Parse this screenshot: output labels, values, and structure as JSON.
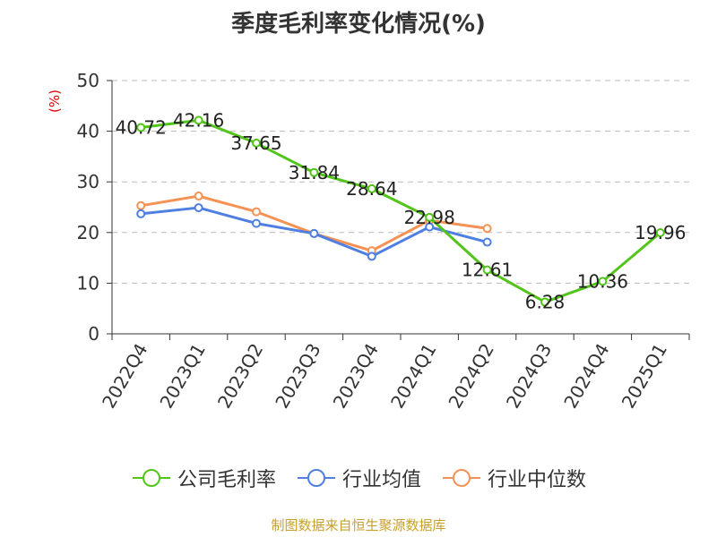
{
  "chart_data": {
    "type": "line",
    "title": "季度毛利率变化情况(%)",
    "ylabel": "(%)",
    "xlabel": "",
    "categories": [
      "2022Q4",
      "2023Q1",
      "2023Q2",
      "2023Q3",
      "2023Q4",
      "2024Q1",
      "2024Q2",
      "2024Q3",
      "2024Q4",
      "2025Q1"
    ],
    "ylim": [
      0,
      50
    ],
    "yticks": [
      0,
      10,
      20,
      30,
      40,
      50
    ],
    "grid": true,
    "legend_position": "bottom",
    "series": [
      {
        "name": "公司毛利率",
        "color": "#52c41a",
        "values": [
          40.72,
          42.16,
          37.65,
          31.84,
          28.64,
          22.98,
          12.61,
          6.28,
          10.36,
          19.96
        ],
        "show_labels": true
      },
      {
        "name": "行业均值",
        "color": "#4f7fe0",
        "values": [
          23.7,
          24.9,
          21.8,
          19.8,
          15.3,
          21.1,
          18.1,
          null,
          null,
          null
        ],
        "show_labels": false
      },
      {
        "name": "行业中位数",
        "color": "#f69154",
        "values": [
          25.3,
          27.2,
          24.1,
          19.8,
          16.4,
          22.4,
          20.8,
          null,
          null,
          null
        ],
        "show_labels": false
      }
    ]
  },
  "source_text": "制图数据来自恒生聚源数据库"
}
